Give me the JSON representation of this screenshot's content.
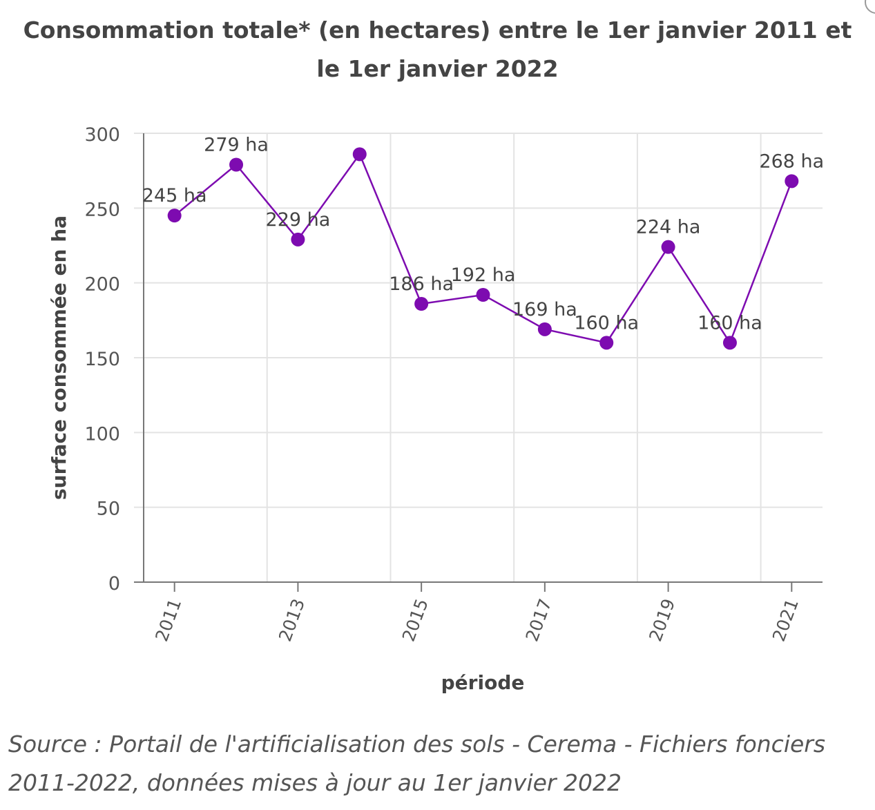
{
  "chart_data": {
    "type": "line",
    "title": "Consommation totale* (en hectares) entre le 1er janvier 2011 et le 1er janvier 2022",
    "xlabel": "période",
    "ylabel": "surface consommée en ha",
    "x": [
      "2011",
      "2012",
      "2013",
      "2014",
      "2015",
      "2016",
      "2017",
      "2018",
      "2019",
      "2020",
      "2021"
    ],
    "x_tick_labels": [
      "2011",
      "2013",
      "2015",
      "2017",
      "2019",
      "2021"
    ],
    "values": [
      245,
      279,
      229,
      286,
      186,
      192,
      169,
      160,
      224,
      160,
      268
    ],
    "data_labels": [
      "245 ha",
      "279 ha",
      "229 ha",
      "",
      "186 ha",
      "192 ha",
      "169 ha",
      "160 ha",
      "224 ha",
      "160 ha",
      "268 ha"
    ],
    "ylim": [
      0,
      300
    ],
    "y_ticks": [
      0,
      50,
      100,
      150,
      200,
      250,
      300
    ],
    "grid": true,
    "legend": "none",
    "color": "#7d0bb0"
  },
  "source": "Source : Portail de l'artificialisation des sols - Cerema - Fichiers fonciers 2011-2022, données mises à jour au 1er janvier 2022"
}
